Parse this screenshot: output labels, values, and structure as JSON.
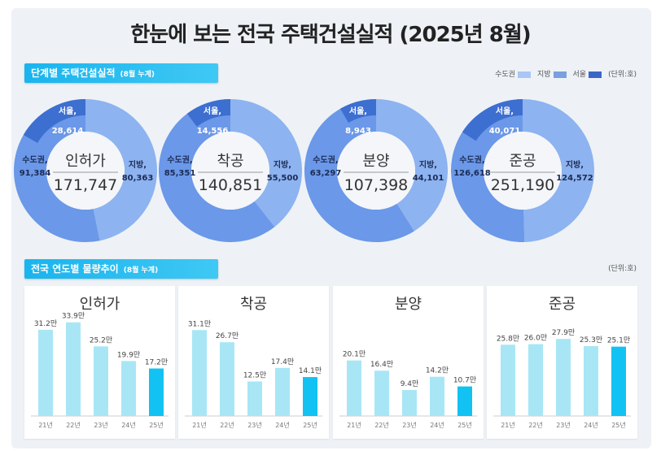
{
  "title": "한눈에 보는 전국 주택건설실적 (2025년 8월)",
  "section1": {
    "label": "단계별 주택건설실적",
    "sub": "(8월 누계)"
  },
  "legend": {
    "items": [
      {
        "label": "수도권",
        "color": "#a9c6f5"
      },
      {
        "label": "지방",
        "color": "#7aa0e0"
      },
      {
        "label": "서울",
        "color": "#3a66c8"
      }
    ],
    "unit": "(단위:호)"
  },
  "donut_colors": {
    "capital": "#6b98e8",
    "local": "#8db3f0",
    "seoul": "#3d6fd1"
  },
  "donuts": [
    {
      "name": "인허가",
      "total": "171,747",
      "capital_label": "수도권,",
      "capital": 91384,
      "capital_text": "91,384",
      "local_label": "지방,",
      "local": 80363,
      "local_text": "80,363",
      "seoul_label": "서울,",
      "seoul": 28614,
      "seoul_text": "28,614"
    },
    {
      "name": "착공",
      "total": "140,851",
      "capital_label": "수도권,",
      "capital": 85351,
      "capital_text": "85,351",
      "local_label": "지방,",
      "local": 55500,
      "local_text": "55,500",
      "seoul_label": "서울,",
      "seoul": 14556,
      "seoul_text": "14,556"
    },
    {
      "name": "분양",
      "total": "107,398",
      "capital_label": "수도권,",
      "capital": 63297,
      "capital_text": "63,297",
      "local_label": "지방,",
      "local": 44101,
      "local_text": "44,101",
      "seoul_label": "서울,",
      "seoul": 8943,
      "seoul_text": "8,943"
    },
    {
      "name": "준공",
      "total": "251,190",
      "capital_label": "수도권,",
      "capital": 126618,
      "capital_text": "126,618",
      "local_label": "지방,",
      "local": 124572,
      "local_text": "124,572",
      "seoul_label": "서울,",
      "seoul": 40071,
      "seoul_text": "40,071"
    }
  ],
  "section2": {
    "label": "전국 연도별 물량추이",
    "sub": "(8월 누계)",
    "unit": "(단위:호)"
  },
  "chart_data": [
    {
      "type": "bar",
      "title": "인허가",
      "categories": [
        "21년",
        "22년",
        "23년",
        "24년",
        "25년"
      ],
      "values": [
        31.2,
        33.9,
        25.2,
        19.9,
        17.2
      ],
      "labels": [
        "31.2만",
        "33.9만",
        "25.2만",
        "19.9만",
        "17.2만"
      ]
    },
    {
      "type": "bar",
      "title": "착공",
      "categories": [
        "21년",
        "22년",
        "23년",
        "24년",
        "25년"
      ],
      "values": [
        31.1,
        26.7,
        12.5,
        17.4,
        14.1
      ],
      "labels": [
        "31.1만",
        "26.7만",
        "12.5만",
        "17.4만",
        "14.1만"
      ]
    },
    {
      "type": "bar",
      "title": "분양",
      "categories": [
        "21년",
        "22년",
        "23년",
        "24년",
        "25년"
      ],
      "values": [
        20.1,
        16.4,
        9.4,
        14.2,
        10.7
      ],
      "labels": [
        "20.1만",
        "16.4만",
        "9.4만",
        "14.2만",
        "10.7만"
      ]
    },
    {
      "type": "bar",
      "title": "준공",
      "categories": [
        "21년",
        "22년",
        "23년",
        "24년",
        "25년"
      ],
      "values": [
        25.8,
        26.0,
        27.9,
        25.3,
        25.1
      ],
      "labels": [
        "25.8만",
        "26.0만",
        "27.9만",
        "25.3만",
        "25.1만"
      ]
    }
  ],
  "bar_colors": {
    "past": "#a8e6f6",
    "current": "#12c2f2"
  }
}
